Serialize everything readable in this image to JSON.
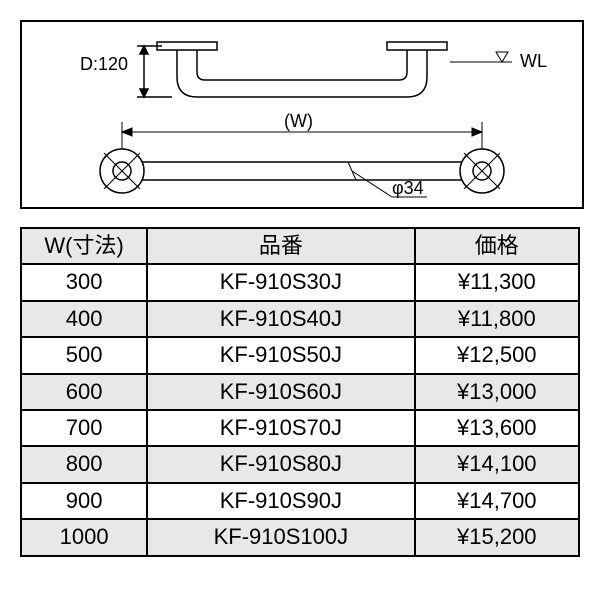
{
  "diagram": {
    "d_label": "D:120",
    "w_label": "(W)",
    "wl_label": "WL",
    "phi_label": "φ34",
    "stroke": "#000000",
    "line_width": 1.5,
    "font_size": 18
  },
  "table": {
    "headers": {
      "w": "W(寸法)",
      "model": "品番",
      "price": "価格"
    },
    "rows": [
      {
        "w": "300",
        "model": "KF-910S30J",
        "price": "¥11,300",
        "shaded": false
      },
      {
        "w": "400",
        "model": "KF-910S40J",
        "price": "¥11,800",
        "shaded": true
      },
      {
        "w": "500",
        "model": "KF-910S50J",
        "price": "¥12,500",
        "shaded": false
      },
      {
        "w": "600",
        "model": "KF-910S60J",
        "price": "¥13,000",
        "shaded": true
      },
      {
        "w": "700",
        "model": "KF-910S70J",
        "price": "¥13,600",
        "shaded": false
      },
      {
        "w": "800",
        "model": "KF-910S80J",
        "price": "¥14,100",
        "shaded": true
      },
      {
        "w": "900",
        "model": "KF-910S90J",
        "price": "¥14,700",
        "shaded": false
      },
      {
        "w": "1000",
        "model": "KF-910S100J",
        "price": "¥15,200",
        "shaded": true
      }
    ],
    "header_bg": "#e8e8e8",
    "shaded_bg": "#e8e8e8",
    "border_color": "#000000",
    "font_size": 22
  }
}
